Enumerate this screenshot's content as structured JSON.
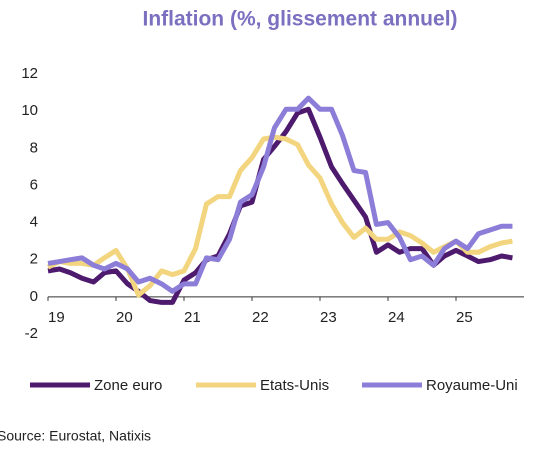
{
  "chart_data": {
    "type": "line",
    "title": "Inflation (%, glissement annuel)",
    "source": "Source: Eurostat, Natixis",
    "x": [
      2019,
      2019.17,
      2019.33,
      2019.5,
      2019.67,
      2019.83,
      2020,
      2020.17,
      2020.33,
      2020.5,
      2020.67,
      2020.83,
      2021,
      2021.17,
      2021.33,
      2021.5,
      2021.67,
      2021.83,
      2022,
      2022.17,
      2022.33,
      2022.5,
      2022.67,
      2022.83,
      2023,
      2023.17,
      2023.33,
      2023.5,
      2023.67,
      2023.83,
      2024,
      2024.17,
      2024.33,
      2024.5,
      2024.67,
      2024.83,
      2025,
      2025.17,
      2025.33,
      2025.5,
      2025.67,
      2025.83
    ],
    "series": [
      {
        "name": "Zone euro",
        "color": "#4e1a6e",
        "values": [
          1.4,
          1.5,
          1.3,
          1.0,
          0.8,
          1.3,
          1.4,
          0.7,
          0.3,
          -0.2,
          -0.3,
          -0.3,
          0.9,
          1.3,
          2.0,
          2.2,
          3.4,
          4.9,
          5.1,
          7.4,
          8.1,
          8.9,
          9.9,
          10.1,
          8.6,
          7.0,
          6.1,
          5.2,
          4.3,
          2.4,
          2.8,
          2.4,
          2.6,
          2.6,
          1.7,
          2.2,
          2.5,
          2.2,
          1.9,
          2.0,
          2.2,
          2.1
        ]
      },
      {
        "name": "Etats-Unis",
        "color": "#f2d57e",
        "values": [
          1.6,
          1.9,
          1.8,
          1.8,
          1.7,
          2.1,
          2.5,
          1.5,
          0.1,
          0.6,
          1.4,
          1.2,
          1.4,
          2.6,
          5.0,
          5.4,
          5.4,
          6.8,
          7.5,
          8.5,
          8.6,
          8.5,
          8.2,
          7.1,
          6.4,
          5.0,
          4.0,
          3.2,
          3.7,
          3.1,
          3.1,
          3.5,
          3.3,
          2.9,
          2.4,
          2.7,
          3.0,
          2.4,
          2.4,
          2.7,
          2.9,
          3.0
        ]
      },
      {
        "name": "Royaume-Uni",
        "color": "#8c7ed8",
        "values": [
          1.8,
          1.9,
          2.0,
          2.1,
          1.7,
          1.5,
          1.8,
          1.5,
          0.8,
          1.0,
          0.7,
          0.3,
          0.7,
          0.7,
          2.1,
          2.0,
          3.1,
          5.1,
          5.5,
          7.0,
          9.1,
          10.1,
          10.1,
          10.7,
          10.1,
          10.1,
          8.7,
          6.8,
          6.7,
          3.9,
          4.0,
          3.2,
          2.0,
          2.2,
          1.7,
          2.6,
          3.0,
          2.6,
          3.4,
          3.6,
          3.8,
          3.8
        ]
      }
    ],
    "xlim": [
      2019,
      2026
    ],
    "xticks": [
      {
        "value": 2019,
        "label": "19"
      },
      {
        "value": 2020,
        "label": "20"
      },
      {
        "value": 2021,
        "label": "21"
      },
      {
        "value": 2022,
        "label": "22"
      },
      {
        "value": 2023,
        "label": "23"
      },
      {
        "value": 2024,
        "label": "24"
      },
      {
        "value": 2025,
        "label": "25"
      }
    ],
    "ylim": [
      -2,
      12
    ],
    "yticks": [
      -2,
      0,
      2,
      4,
      6,
      8,
      10,
      12
    ],
    "grid": false,
    "legend": "bottom"
  }
}
